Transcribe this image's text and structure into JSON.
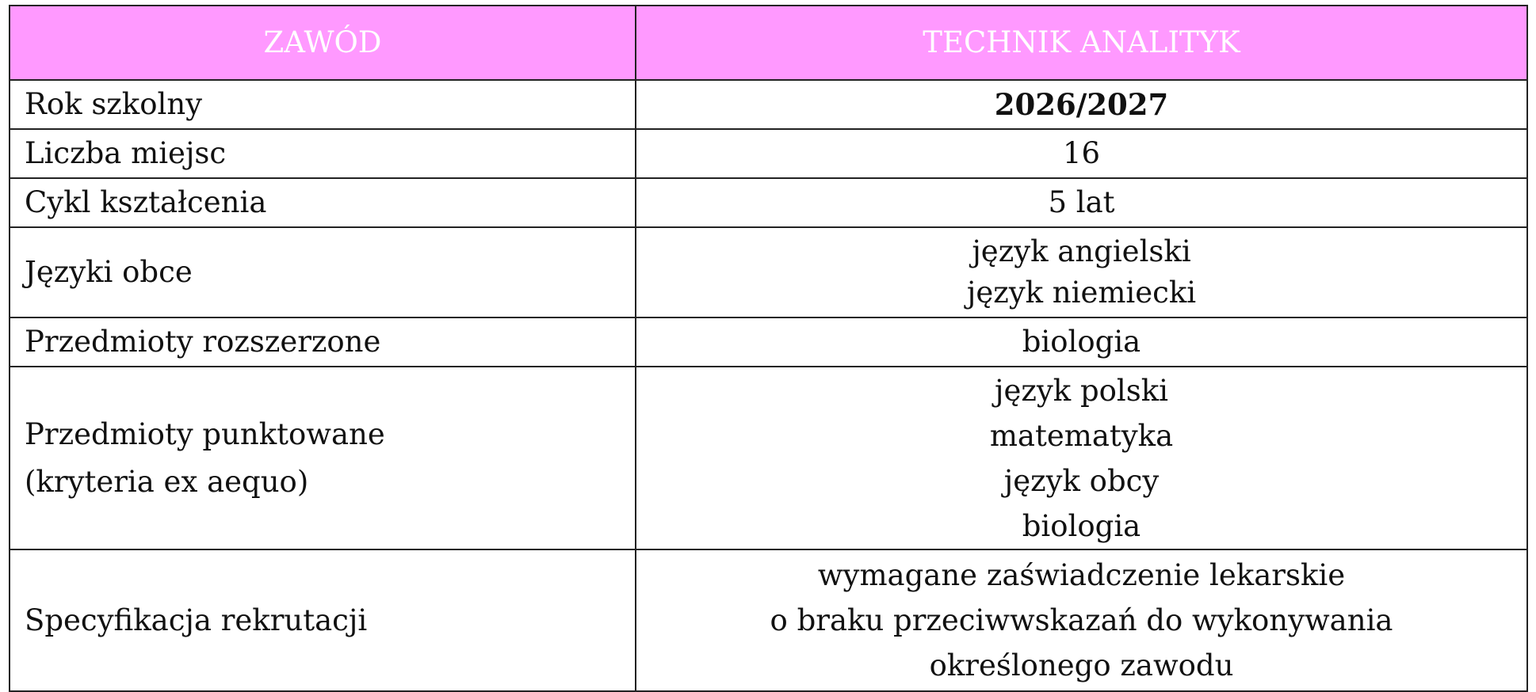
{
  "header": {
    "col1": "ZAWÓD",
    "col2": "TECHNIK ANALITYK"
  },
  "colors": {
    "header_bg": "#ff99ff",
    "header_text": "#ffffff"
  },
  "rows": [
    {
      "label": "Rok szkolny",
      "values": [
        "2026/2027"
      ]
    },
    {
      "label": "Liczba miejsc",
      "values": [
        "16"
      ]
    },
    {
      "label": "Cykl kształcenia",
      "values": [
        "5 lat"
      ]
    },
    {
      "label": "Języki obce",
      "values": [
        "język angielski",
        "język niemiecki"
      ]
    },
    {
      "label": "Przedmioty rozszerzone",
      "values": [
        "biologia"
      ]
    },
    {
      "label": "Przedmioty punktowane",
      "label2": "(kryteria ex aequo)",
      "values": [
        "język polski",
        "matematyka",
        "język obcy",
        "biologia"
      ]
    },
    {
      "label": "Specyfikacja rekrutacji",
      "values": [
        "wymagane zaświadczenie lekarskie",
        "o braku przeciwwskazań do wykonywania",
        "określonego zawodu"
      ]
    }
  ]
}
